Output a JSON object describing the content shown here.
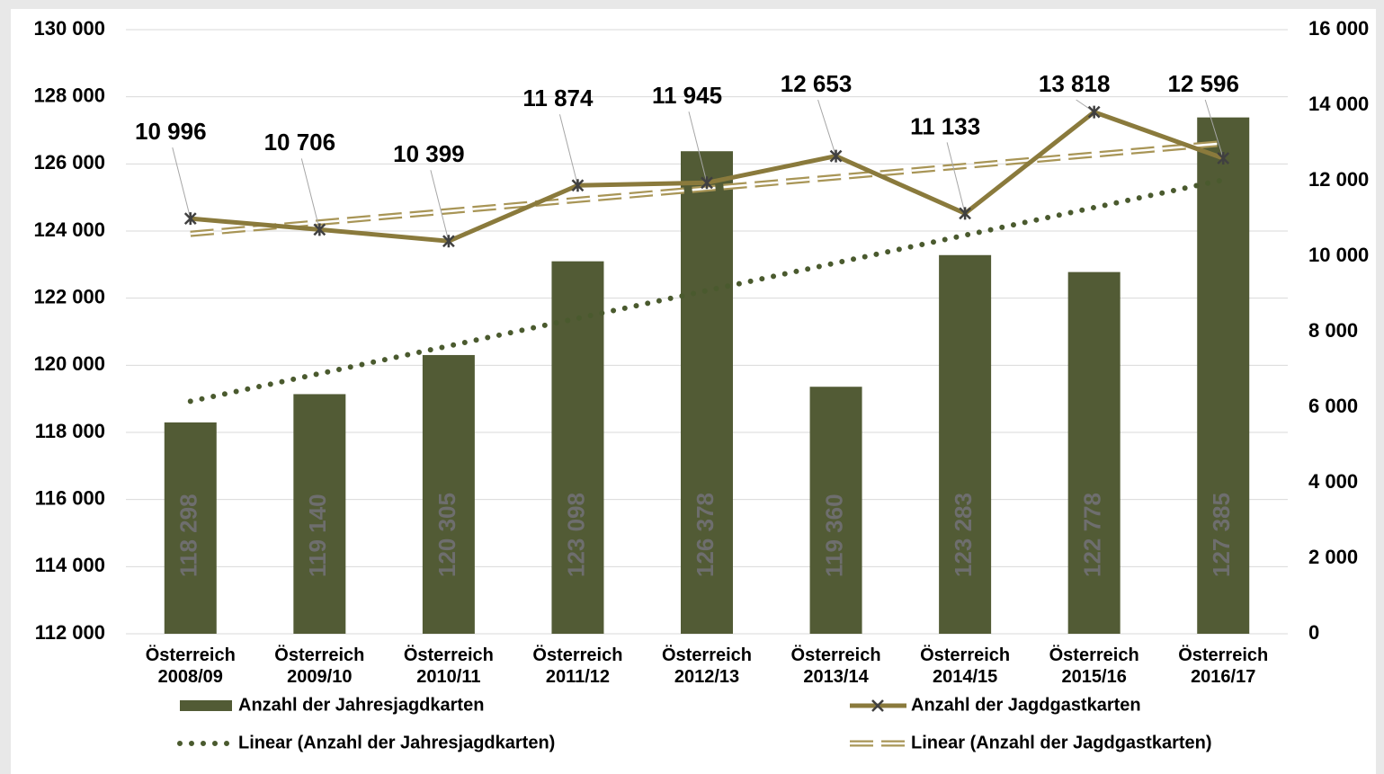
{
  "chart_data": {
    "type": "bar_line",
    "categories": [
      "Österreich 2008/09",
      "Österreich 2009/10",
      "Österreich 2010/11",
      "Österreich 2011/12",
      "Österreich 2012/13",
      "Österreich 2013/14",
      "Österreich 2014/15",
      "Österreich 2015/16",
      "Österreich 2016/17"
    ],
    "series": [
      {
        "name": "Anzahl der Jahresjagdkarten",
        "type": "bar",
        "axis": "y",
        "color": "#525b35",
        "values": [
          118298,
          119140,
          120305,
          123098,
          126378,
          119360,
          123283,
          122778,
          127385
        ],
        "value_labels": [
          "118 298",
          "119 140",
          "120 305",
          "123 098",
          "126 378",
          "119 360",
          "123 283",
          "122 778",
          "127 385"
        ],
        "trendline": {
          "name": "Linear (Anzahl der Jahresjagdkarten)",
          "color": "#4a5a2e",
          "style": "dotted"
        }
      },
      {
        "name": "Anzahl der Jagdgastkarten",
        "type": "line",
        "axis": "y2",
        "color": "#8a7a3c",
        "values": [
          10996,
          10706,
          10399,
          11874,
          11945,
          12653,
          11133,
          13818,
          12596
        ],
        "value_labels": [
          "10 996",
          "10 706",
          "10 399",
          "11 874",
          "11 945",
          "12 653",
          "11 133",
          "13 818",
          "12 596"
        ],
        "trendline": {
          "name": "Linear (Anzahl der Jagdgastkarten)",
          "color": "#a89556",
          "style": "double-dashed"
        }
      }
    ],
    "ylim": [
      112000,
      130000
    ],
    "yticks": [
      {
        "value": 112000,
        "label": "112 000"
      },
      {
        "value": 114000,
        "label": "114 000"
      },
      {
        "value": 116000,
        "label": "116 000"
      },
      {
        "value": 118000,
        "label": "118 000"
      },
      {
        "value": 120000,
        "label": "120 000"
      },
      {
        "value": 122000,
        "label": "122 000"
      },
      {
        "value": 124000,
        "label": "124 000"
      },
      {
        "value": 126000,
        "label": "126 000"
      },
      {
        "value": 128000,
        "label": "128 000"
      },
      {
        "value": 130000,
        "label": "130 000"
      }
    ],
    "y2lim": [
      0,
      16000
    ],
    "y2ticks": [
      0,
      {
        "value": 2000,
        "label": "2 000"
      },
      {
        "value": 4000,
        "label": "4 000"
      },
      {
        "value": 6000,
        "label": "6 000"
      },
      {
        "value": 8000,
        "label": "8 000"
      },
      {
        "value": 10000,
        "label": "10 000"
      },
      {
        "value": 12000,
        "label": "12 000"
      },
      {
        "value": 14000,
        "label": "14 000"
      },
      {
        "value": 16000,
        "label": "16 000"
      }
    ],
    "grid": true
  }
}
